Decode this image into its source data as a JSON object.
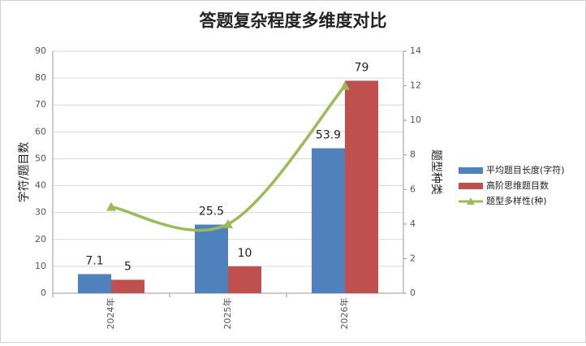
{
  "chart_data": {
    "type": "bar",
    "title": "答题复杂程度多维度对比",
    "categories": [
      "2024年",
      "2025年",
      "2026年"
    ],
    "y_label": "字符/题目数",
    "y2_label": "题型种类",
    "series": [
      {
        "name": "平均题目长度(字符)",
        "color": "#4f81bd",
        "type": "bar",
        "values": [
          7.1,
          25.5,
          53.9
        ]
      },
      {
        "name": "高阶思维题目数",
        "color": "#c0504d",
        "type": "bar",
        "values": [
          5,
          10,
          79
        ]
      },
      {
        "name": "题型多样性(种)",
        "color": "#9bbb59",
        "type": "line",
        "axis": "y2",
        "values": [
          5,
          4,
          12
        ]
      }
    ],
    "ylim": [
      0,
      90
    ],
    "yticks": [
      0,
      10,
      20,
      30,
      40,
      50,
      60,
      70,
      80,
      90
    ],
    "y2lim": [
      0,
      14
    ],
    "y2ticks": [
      0,
      2,
      4,
      6,
      8,
      10,
      12,
      14
    ],
    "grid": true,
    "legend": "right"
  }
}
